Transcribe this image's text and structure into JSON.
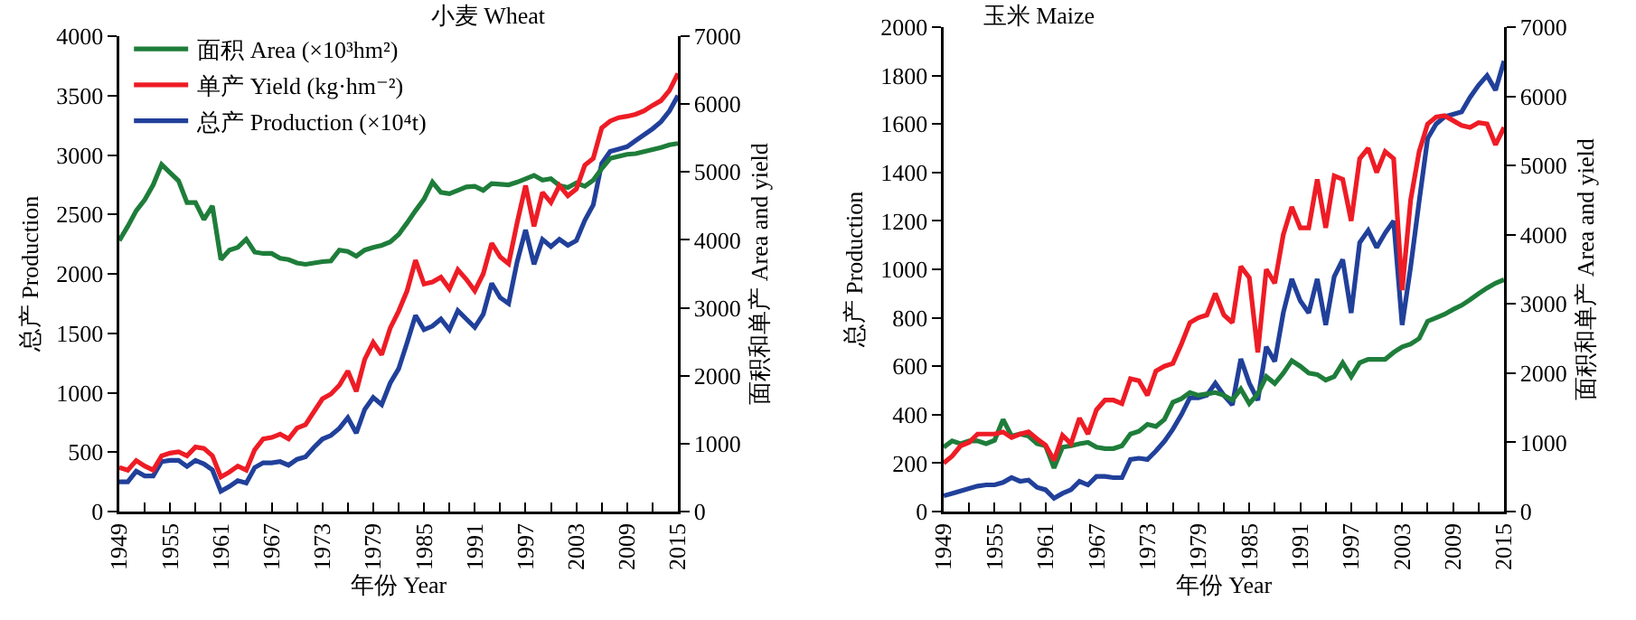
{
  "chart_data": [
    {
      "type": "line",
      "title": "小麦 Wheat",
      "xlabel": "年份 Year",
      "ylabel": "总产 Production",
      "y2label": "面积和单产 Area and yield",
      "legend": "top left",
      "x": [
        1949,
        1950,
        1951,
        1952,
        1953,
        1954,
        1955,
        1956,
        1957,
        1958,
        1959,
        1960,
        1961,
        1962,
        1963,
        1964,
        1965,
        1966,
        1967,
        1968,
        1969,
        1970,
        1971,
        1972,
        1973,
        1974,
        1975,
        1976,
        1977,
        1978,
        1979,
        1980,
        1981,
        1982,
        1983,
        1984,
        1985,
        1986,
        1987,
        1988,
        1989,
        1990,
        1991,
        1992,
        1993,
        1994,
        1995,
        1996,
        1997,
        1998,
        1999,
        2000,
        2001,
        2002,
        2003,
        2004,
        2005,
        2006,
        2007,
        2008,
        2009,
        2010,
        2011,
        2012,
        2013,
        2014,
        2015
      ],
      "xlim": [
        1949,
        2015
      ],
      "xticks": [
        1949,
        {
          "value": 1952,
          "label": null
        },
        1955,
        {
          "value": 1958,
          "label": null
        },
        1961,
        {
          "value": 1964,
          "label": null
        },
        1967,
        {
          "value": 1970,
          "label": null
        },
        1973,
        {
          "value": 1976,
          "label": null
        },
        1979,
        {
          "value": 1982,
          "label": null
        },
        1985,
        {
          "value": 1988,
          "label": null
        },
        1991,
        {
          "value": 1994,
          "label": null
        },
        1997,
        {
          "value": 2000,
          "label": null
        },
        2003,
        {
          "value": 2006,
          "label": null
        },
        2009,
        {
          "value": 2012,
          "label": null
        },
        2015
      ],
      "ylim": [
        0,
        4000
      ],
      "yticks": [
        0,
        500,
        1000,
        1500,
        2000,
        2500,
        3000,
        3500,
        4000
      ],
      "y2lim": [
        0,
        7000
      ],
      "y2ticks": [
        0,
        1000,
        2000,
        3000,
        4000,
        5000,
        6000,
        7000
      ],
      "series": [
        {
          "name": "面积 Area (×10³hm²)",
          "color": "#1e7d3a",
          "axis": "y2",
          "values": [
            3990,
            4200,
            4430,
            4590,
            4810,
            5110,
            4990,
            4870,
            4550,
            4550,
            4300,
            4500,
            3710,
            3850,
            3890,
            4010,
            3820,
            3800,
            3800,
            3730,
            3710,
            3660,
            3640,
            3660,
            3680,
            3690,
            3850,
            3830,
            3760,
            3850,
            3890,
            3920,
            3970,
            4080,
            4250,
            4430,
            4600,
            4850,
            4700,
            4680,
            4730,
            4780,
            4790,
            4730,
            4830,
            4820,
            4810,
            4850,
            4900,
            4950,
            4880,
            4900,
            4800,
            4770,
            4840,
            4790,
            4880,
            5050,
            5200,
            5230,
            5260,
            5270,
            5300,
            5330,
            5360,
            5400,
            5420
          ]
        },
        {
          "name": "单产 Yield (kg·hm⁻²)",
          "color": "#ee1c25",
          "axis": "y2",
          "values": [
            650,
            610,
            750,
            670,
            610,
            820,
            860,
            880,
            820,
            950,
            930,
            820,
            510,
            580,
            670,
            610,
            910,
            1070,
            1090,
            1140,
            1070,
            1230,
            1280,
            1470,
            1660,
            1730,
            1860,
            2070,
            1770,
            2240,
            2490,
            2310,
            2700,
            2950,
            3250,
            3700,
            3350,
            3380,
            3450,
            3280,
            3560,
            3420,
            3250,
            3500,
            3950,
            3750,
            3650,
            4250,
            4800,
            4200,
            4700,
            4550,
            4800,
            4650,
            4750,
            5100,
            5200,
            5650,
            5750,
            5800,
            5820,
            5850,
            5900,
            5980,
            6050,
            6200,
            6450
          ]
        },
        {
          "name": "总产 Production (×10⁴t)",
          "color": "#21409a",
          "axis": "y",
          "values": [
            250,
            250,
            340,
            300,
            300,
            420,
            430,
            430,
            380,
            430,
            400,
            350,
            170,
            210,
            260,
            240,
            370,
            410,
            410,
            420,
            390,
            440,
            460,
            540,
            610,
            640,
            700,
            790,
            660,
            860,
            960,
            900,
            1080,
            1200,
            1420,
            1650,
            1530,
            1560,
            1620,
            1530,
            1690,
            1620,
            1550,
            1660,
            1920,
            1800,
            1750,
            2100,
            2370,
            2080,
            2290,
            2230,
            2290,
            2240,
            2280,
            2450,
            2580,
            2930,
            3030,
            3050,
            3070,
            3120,
            3170,
            3220,
            3280,
            3370,
            3500
          ]
        }
      ]
    },
    {
      "type": "line",
      "title": "玉米 Maize",
      "xlabel": "年份 Year",
      "ylabel": "总产 Production",
      "y2label": "面积和单产 Area and yield",
      "x": [
        1949,
        1950,
        1951,
        1952,
        1953,
        1954,
        1955,
        1956,
        1957,
        1958,
        1959,
        1960,
        1961,
        1962,
        1963,
        1964,
        1965,
        1966,
        1967,
        1968,
        1969,
        1970,
        1971,
        1972,
        1973,
        1974,
        1975,
        1976,
        1977,
        1978,
        1979,
        1980,
        1981,
        1982,
        1983,
        1984,
        1985,
        1986,
        1987,
        1988,
        1989,
        1990,
        1991,
        1992,
        1993,
        1994,
        1995,
        1996,
        1997,
        1998,
        1999,
        2000,
        2001,
        2002,
        2003,
        2004,
        2005,
        2006,
        2007,
        2008,
        2009,
        2010,
        2011,
        2012,
        2013,
        2014,
        2015
      ],
      "xlim": [
        1949,
        2015
      ],
      "xticks": [
        1949,
        {
          "value": 1952,
          "label": null
        },
        1955,
        {
          "value": 1958,
          "label": null
        },
        1961,
        {
          "value": 1964,
          "label": null
        },
        1967,
        {
          "value": 1970,
          "label": null
        },
        1973,
        {
          "value": 1976,
          "label": null
        },
        1979,
        {
          "value": 1982,
          "label": null
        },
        1985,
        {
          "value": 1988,
          "label": null
        },
        1991,
        {
          "value": 1994,
          "label": null
        },
        1997,
        {
          "value": 2000,
          "label": null
        },
        2003,
        {
          "value": 2006,
          "label": null
        },
        2009,
        {
          "value": 2012,
          "label": null
        },
        2015
      ],
      "ylim": [
        0,
        2000
      ],
      "yticks": [
        0,
        200,
        400,
        600,
        800,
        1000,
        1200,
        1400,
        1600,
        1800,
        2000
      ],
      "y2lim": [
        0,
        7000
      ],
      "y2ticks": [
        0,
        1000,
        2000,
        3000,
        4000,
        5000,
        6000,
        7000
      ],
      "series": [
        {
          "color": "#1e7d3a",
          "axis": "y2",
          "values": [
            930,
            1020,
            980,
            1020,
            1020,
            980,
            1030,
            1330,
            1090,
            1120,
            1090,
            980,
            950,
            630,
            930,
            950,
            980,
            1000,
            930,
            910,
            910,
            950,
            1120,
            1160,
            1260,
            1230,
            1330,
            1580,
            1630,
            1720,
            1680,
            1700,
            1720,
            1680,
            1610,
            1770,
            1560,
            1700,
            1950,
            1850,
            2000,
            2180,
            2100,
            2000,
            1980,
            1900,
            1950,
            2150,
            1950,
            2150,
            2200,
            2200,
            2200,
            2300,
            2380,
            2420,
            2500,
            2750,
            2800,
            2850,
            2920,
            2980,
            3060,
            3150,
            3230,
            3300,
            3350
          ]
        },
        {
          "color": "#ee1c25",
          "axis": "y2",
          "values": [
            700,
            800,
            950,
            1000,
            1120,
            1120,
            1120,
            1150,
            1070,
            1120,
            1150,
            1050,
            960,
            740,
            1100,
            980,
            1350,
            1120,
            1470,
            1610,
            1610,
            1560,
            1920,
            1890,
            1680,
            2030,
            2100,
            2140,
            2420,
            2730,
            2800,
            2840,
            3150,
            2840,
            2730,
            3540,
            3380,
            2300,
            3500,
            3300,
            4000,
            4400,
            4100,
            4100,
            4800,
            4100,
            4850,
            4800,
            4200,
            5100,
            5250,
            4900,
            5200,
            5100,
            3200,
            4500,
            5200,
            5600,
            5700,
            5720,
            5650,
            5580,
            5550,
            5620,
            5600,
            5300,
            5550
          ]
        },
        {
          "color": "#21409a",
          "axis": "y",
          "values": [
            65,
            75,
            85,
            95,
            105,
            110,
            110,
            120,
            140,
            125,
            130,
            100,
            90,
            55,
            75,
            90,
            125,
            110,
            145,
            145,
            140,
            140,
            215,
            220,
            215,
            250,
            290,
            340,
            400,
            470,
            470,
            480,
            530,
            480,
            440,
            630,
            530,
            460,
            680,
            620,
            820,
            960,
            870,
            820,
            960,
            770,
            970,
            1040,
            820,
            1110,
            1160,
            1090,
            1150,
            1200,
            770,
            1010,
            1280,
            1540,
            1600,
            1630,
            1640,
            1650,
            1710,
            1760,
            1800,
            1740,
            1860
          ]
        }
      ]
    }
  ]
}
